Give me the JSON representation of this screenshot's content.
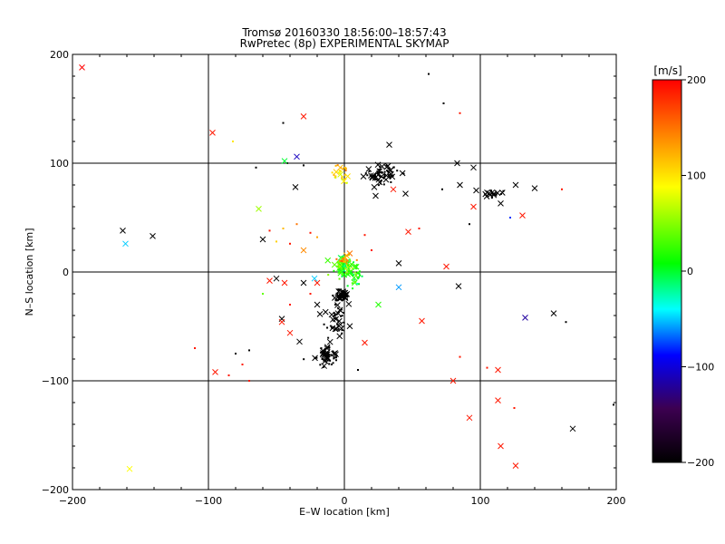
{
  "chart_data": {
    "type": "scatter",
    "title": "Tromsø 20160330 18:56:00–18:57:43",
    "subtitle": "RwPretec (8p) EXPERIMENTAL SKYMAP",
    "xlabel": "E–W location [km]",
    "ylabel": "N–S location [km]",
    "xlim": [
      -200,
      200
    ],
    "ylim": [
      -200,
      200
    ],
    "xticks": [
      -200,
      -100,
      0,
      100,
      200
    ],
    "yticks": [
      -200,
      -100,
      0,
      100,
      200
    ],
    "xtick_labels": [
      "−200",
      "−100",
      "0",
      "100",
      "200"
    ],
    "ytick_labels": [
      "200",
      "100",
      "0",
      "−100",
      "−200"
    ],
    "grid": true,
    "colorbar": {
      "label": "[m/s]",
      "min": -200,
      "max": 200,
      "ticks": [
        200,
        100,
        0,
        -100,
        -200
      ],
      "tick_labels": [
        "200",
        "100",
        "0",
        "−100",
        "−200"
      ],
      "colors": [
        "#000000",
        "#3c0050",
        "#0000ff",
        "#00ffff",
        "#00ff00",
        "#ffff00",
        "#ff8000",
        "#ff0000"
      ]
    },
    "crosses": [
      {
        "x": -193,
        "y": 188,
        "v": 200
      },
      {
        "x": -97,
        "y": 128,
        "v": 190
      },
      {
        "x": -30,
        "y": 143,
        "v": 190
      },
      {
        "x": -35,
        "y": 106,
        "v": -110
      },
      {
        "x": -44,
        "y": 102,
        "v": 0
      },
      {
        "x": -36,
        "y": 78,
        "v": -200
      },
      {
        "x": -63,
        "y": 58,
        "v": 60
      },
      {
        "x": -60,
        "y": 30,
        "v": -200
      },
      {
        "x": -30,
        "y": 20,
        "v": 140
      },
      {
        "x": -163,
        "y": 38,
        "v": -200
      },
      {
        "x": -141,
        "y": 33,
        "v": -200
      },
      {
        "x": -161,
        "y": 26,
        "v": -50
      },
      {
        "x": -55,
        "y": -8,
        "v": 190
      },
      {
        "x": -50,
        "y": -6,
        "v": -200
      },
      {
        "x": -44,
        "y": -10,
        "v": 190
      },
      {
        "x": -46,
        "y": -43,
        "v": -200
      },
      {
        "x": -46,
        "y": -46,
        "v": 190
      },
      {
        "x": -40,
        "y": -56,
        "v": 190
      },
      {
        "x": -33,
        "y": -64,
        "v": -200
      },
      {
        "x": -30,
        "y": -10,
        "v": -200
      },
      {
        "x": -20,
        "y": -10,
        "v": 190
      },
      {
        "x": -22,
        "y": -6,
        "v": -50
      },
      {
        "x": -6,
        "y": 92,
        "v": 110
      },
      {
        "x": -3,
        "y": 96,
        "v": 120
      },
      {
        "x": 33,
        "y": 117,
        "v": -200
      },
      {
        "x": 22,
        "y": 78,
        "v": -200
      },
      {
        "x": 23,
        "y": 70,
        "v": -200
      },
      {
        "x": 36,
        "y": 76,
        "v": 190
      },
      {
        "x": 45,
        "y": 72,
        "v": -200
      },
      {
        "x": 40,
        "y": 8,
        "v": -200
      },
      {
        "x": 47,
        "y": 37,
        "v": 190
      },
      {
        "x": 75,
        "y": 5,
        "v": 190
      },
      {
        "x": 83,
        "y": 100,
        "v": -200
      },
      {
        "x": 85,
        "y": 80,
        "v": -200
      },
      {
        "x": 95,
        "y": 96,
        "v": -200
      },
      {
        "x": 95,
        "y": 60,
        "v": 190
      },
      {
        "x": 97,
        "y": 75,
        "v": -200
      },
      {
        "x": 105,
        "y": 73,
        "v": -200
      },
      {
        "x": 110,
        "y": 72,
        "v": -200
      },
      {
        "x": 115,
        "y": 63,
        "v": -200
      },
      {
        "x": 126,
        "y": 80,
        "v": -200
      },
      {
        "x": 140,
        "y": 77,
        "v": -200
      },
      {
        "x": 131,
        "y": 52,
        "v": 190
      },
      {
        "x": 84,
        "y": -13,
        "v": -200
      },
      {
        "x": 40,
        "y": -14,
        "v": -60
      },
      {
        "x": 25,
        "y": -30,
        "v": 20
      },
      {
        "x": 57,
        "y": -45,
        "v": 190
      },
      {
        "x": 15,
        "y": -65,
        "v": 190
      },
      {
        "x": 80,
        "y": -100,
        "v": 190
      },
      {
        "x": 113,
        "y": -90,
        "v": 190
      },
      {
        "x": 113,
        "y": -118,
        "v": 190
      },
      {
        "x": 133,
        "y": -42,
        "v": -120
      },
      {
        "x": 154,
        "y": -38,
        "v": -200
      },
      {
        "x": 92,
        "y": -134,
        "v": 190
      },
      {
        "x": 115,
        "y": -160,
        "v": 190
      },
      {
        "x": 126,
        "y": -178,
        "v": 190
      },
      {
        "x": 168,
        "y": -144,
        "v": -200
      },
      {
        "x": -95,
        "y": -92,
        "v": 190
      },
      {
        "x": -158,
        "y": -181,
        "v": 90
      },
      {
        "x": -20,
        "y": -30,
        "v": -200
      }
    ],
    "dots": [
      {
        "x": -45,
        "y": 137,
        "v": -200
      },
      {
        "x": -82,
        "y": 120,
        "v": 100
      },
      {
        "x": -65,
        "y": 96,
        "v": -200
      },
      {
        "x": -30,
        "y": 98,
        "v": -200
      },
      {
        "x": -42,
        "y": 100,
        "v": -200
      },
      {
        "x": 62,
        "y": 182,
        "v": -200
      },
      {
        "x": 73,
        "y": 155,
        "v": -200
      },
      {
        "x": 85,
        "y": 146,
        "v": 190
      },
      {
        "x": 72,
        "y": 76,
        "v": -200
      },
      {
        "x": 92,
        "y": 44,
        "v": -200
      },
      {
        "x": 122,
        "y": 50,
        "v": -80
      },
      {
        "x": 160,
        "y": 76,
        "v": 190
      },
      {
        "x": -55,
        "y": 38,
        "v": 190
      },
      {
        "x": -45,
        "y": 40,
        "v": 120
      },
      {
        "x": -35,
        "y": 44,
        "v": 150
      },
      {
        "x": -25,
        "y": 36,
        "v": 190
      },
      {
        "x": -20,
        "y": 32,
        "v": 130
      },
      {
        "x": -40,
        "y": 26,
        "v": 190
      },
      {
        "x": -50,
        "y": 28,
        "v": 110
      },
      {
        "x": 15,
        "y": 34,
        "v": 190
      },
      {
        "x": 20,
        "y": 20,
        "v": 190
      },
      {
        "x": 55,
        "y": 40,
        "v": 190
      },
      {
        "x": -25,
        "y": -20,
        "v": 190
      },
      {
        "x": -40,
        "y": -30,
        "v": 190
      },
      {
        "x": -60,
        "y": -20,
        "v": 40
      },
      {
        "x": -70,
        "y": -72,
        "v": -200
      },
      {
        "x": -80,
        "y": -75,
        "v": -200
      },
      {
        "x": -75,
        "y": -85,
        "v": 190
      },
      {
        "x": -110,
        "y": -70,
        "v": 190
      },
      {
        "x": -85,
        "y": -95,
        "v": 190
      },
      {
        "x": -70,
        "y": -100,
        "v": 190
      },
      {
        "x": 10,
        "y": -90,
        "v": -200
      },
      {
        "x": 85,
        "y": -78,
        "v": 190
      },
      {
        "x": 105,
        "y": -88,
        "v": 190
      },
      {
        "x": 125,
        "y": -125,
        "v": 190
      },
      {
        "x": 163,
        "y": -46,
        "v": -200
      },
      {
        "x": 198,
        "y": -122,
        "v": -200
      }
    ],
    "clusters": [
      {
        "cx": 27,
        "cy": 90,
        "rx": 9,
        "ry": 6,
        "n": 70,
        "v": -200,
        "crossFrac": 0.35
      },
      {
        "cx": -3,
        "cy": 90,
        "rx": 4,
        "ry": 5,
        "n": 25,
        "v": 110,
        "crossFrac": 0.3
      },
      {
        "cx": 0,
        "cy": 5,
        "rx": 5,
        "ry": 7,
        "n": 90,
        "v": 25,
        "crossFrac": 0.35
      },
      {
        "cx": 8,
        "cy": -5,
        "rx": 4,
        "ry": 6,
        "n": 30,
        "v": 10,
        "crossFrac": 0.2
      },
      {
        "cx": 0,
        "cy": 12,
        "rx": 4,
        "ry": 4,
        "n": 20,
        "v": 150,
        "crossFrac": 0.2
      },
      {
        "cx": -3,
        "cy": -22,
        "rx": 5,
        "ry": 4,
        "n": 45,
        "v": -200,
        "crossFrac": 0.4
      },
      {
        "cx": -6,
        "cy": -45,
        "rx": 6,
        "ry": 9,
        "n": 40,
        "v": -200,
        "crossFrac": 0.4
      },
      {
        "cx": -13,
        "cy": -76,
        "rx": 6,
        "ry": 7,
        "n": 60,
        "v": -200,
        "crossFrac": 0.45
      },
      {
        "cx": 108,
        "cy": 72,
        "rx": 5,
        "ry": 3,
        "n": 15,
        "v": -200,
        "crossFrac": 0.5
      }
    ]
  }
}
